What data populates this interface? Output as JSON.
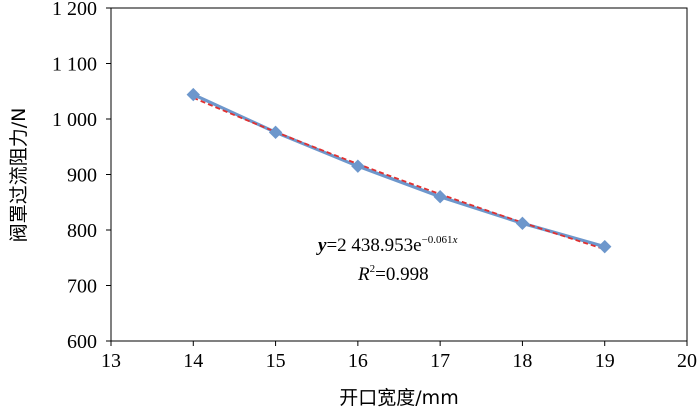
{
  "chart_data": {
    "type": "scatter",
    "xlabel": "开口宽度/mm",
    "ylabel": "阀罩过流阻力/N",
    "xlim": [
      13,
      20
    ],
    "ylim": [
      600,
      1200
    ],
    "x_ticks": [
      13,
      14,
      15,
      16,
      17,
      18,
      19,
      20
    ],
    "y_ticks": [
      600,
      700,
      800,
      900,
      1000,
      1100,
      1200
    ],
    "x_tick_labels": [
      "13",
      "14",
      "15",
      "16",
      "17",
      "18",
      "19",
      "20"
    ],
    "y_tick_labels": [
      "600",
      "700",
      "800",
      "900",
      "1 000",
      "1 100",
      "1 200"
    ],
    "grid": false,
    "series": [
      {
        "x": [
          14,
          15,
          16,
          17,
          18,
          19
        ],
        "y": [
          1044,
          976,
          915,
          860,
          812,
          770
        ],
        "color": "#6d97cc",
        "marker": "diamond"
      }
    ],
    "trendline": {
      "type": "exponential",
      "a": 2438.953,
      "b": -0.061,
      "color": "#e03030",
      "style": "dashed"
    },
    "annotations": {
      "equation": {
        "y_var": "y",
        "eq_sign": "=",
        "coef": "2 438.953e",
        "exponent": "−0.061",
        "x_var": "x"
      },
      "r2": {
        "r_var": "R",
        "power": "2",
        "value": "=0.998"
      }
    }
  }
}
